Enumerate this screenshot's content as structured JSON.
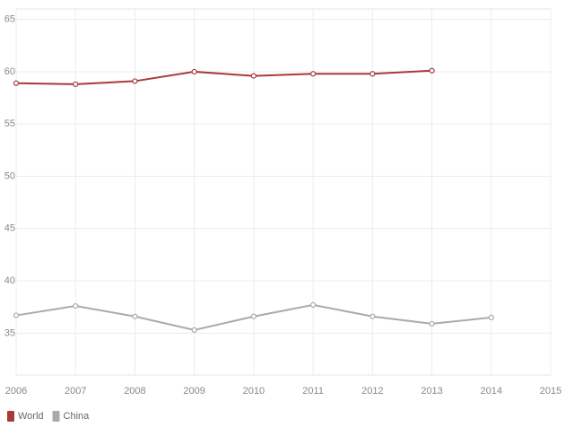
{
  "chart_data": {
    "type": "line",
    "x": [
      2006,
      2007,
      2008,
      2009,
      2010,
      2011,
      2012,
      2013,
      2014
    ],
    "series": [
      {
        "name": "World",
        "color": "#a83a3a",
        "values": [
          58.9,
          58.8,
          59.1,
          60.0,
          59.6,
          59.8,
          59.8,
          60.1,
          null
        ]
      },
      {
        "name": "China",
        "color": "#aaaaaa",
        "values": [
          36.7,
          37.6,
          36.6,
          35.3,
          36.6,
          37.7,
          36.6,
          35.9,
          36.5
        ]
      }
    ],
    "xlim": [
      2006,
      2015
    ],
    "xticks": [
      2006,
      2007,
      2008,
      2009,
      2010,
      2011,
      2012,
      2013,
      2014,
      2015
    ],
    "ylim": [
      31,
      66
    ],
    "yticks": [
      35,
      40,
      45,
      50,
      55,
      60,
      65
    ],
    "grid": true,
    "legend": "bottom-left"
  }
}
